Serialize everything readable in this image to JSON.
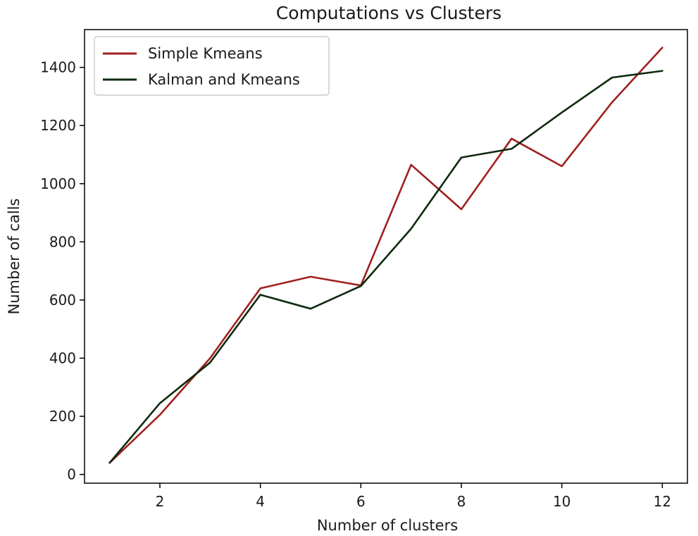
{
  "chart_data": {
    "type": "line",
    "title": "Computations vs Clusters",
    "xlabel": "Number of clusters",
    "ylabel": "Number of calls",
    "xlim": [
      0.5,
      12.5
    ],
    "ylim": [
      -30,
      1530
    ],
    "xticks": [
      2,
      4,
      6,
      8,
      10,
      12
    ],
    "yticks": [
      0,
      200,
      400,
      600,
      800,
      1000,
      1200,
      1400
    ],
    "grid": false,
    "legend_position": "upper left",
    "x": [
      1,
      2,
      3,
      4,
      5,
      6,
      7,
      8,
      9,
      10,
      11,
      12
    ],
    "series": [
      {
        "name": "Simple Kmeans",
        "color": "#a02020",
        "values": [
          40,
          205,
          400,
          640,
          680,
          650,
          1065,
          912,
          1155,
          1060,
          1280,
          1468
        ]
      },
      {
        "name": "Kalman and Kmeans",
        "color": "#0e2a0e",
        "values": [
          40,
          245,
          385,
          618,
          570,
          648,
          845,
          1090,
          1120,
          1245,
          1365,
          1388
        ]
      }
    ]
  }
}
